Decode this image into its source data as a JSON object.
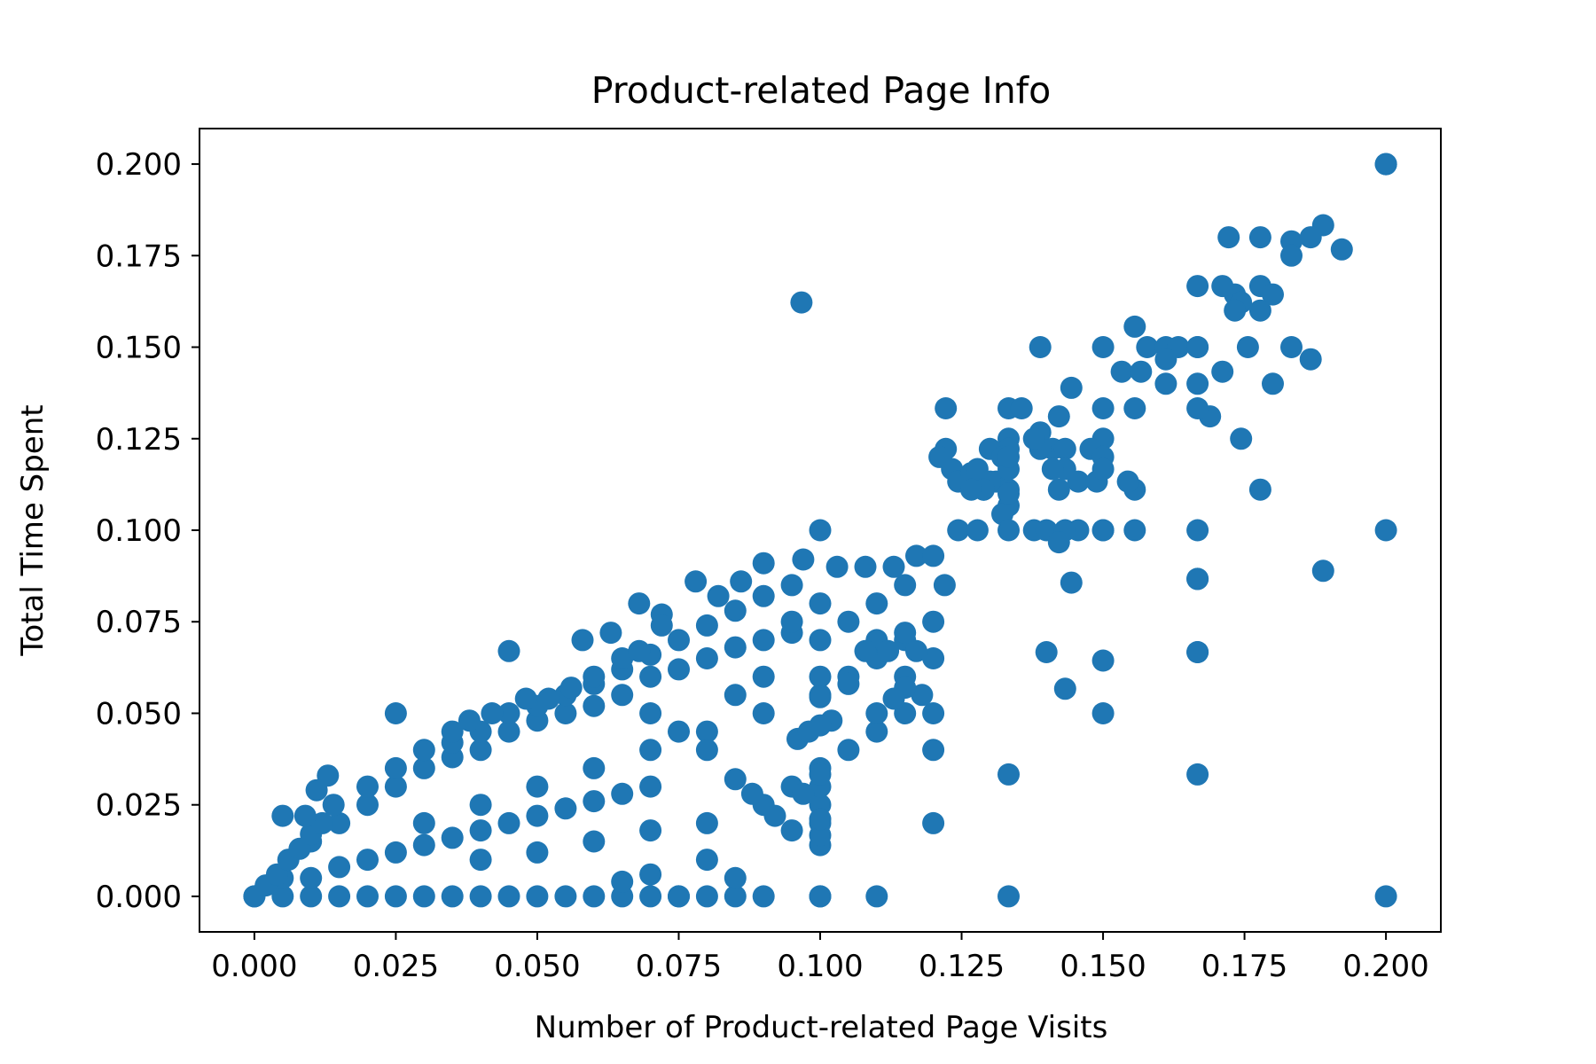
{
  "chart_data": {
    "type": "scatter",
    "title": "Product-related Page Info",
    "xlabel": "Number of Product-related Page Visits",
    "ylabel": "Total Time Spent",
    "xlim": [
      -0.0097,
      0.2097
    ],
    "ylim": [
      -0.0097,
      0.2097
    ],
    "xticks": [
      0.0,
      0.025,
      0.05,
      0.075,
      0.1,
      0.125,
      0.15,
      0.175,
      0.2
    ],
    "yticks": [
      0.0,
      0.025,
      0.05,
      0.075,
      0.1,
      0.125,
      0.15,
      0.175,
      0.2
    ],
    "xtick_labels": [
      "0.000",
      "0.025",
      "0.050",
      "0.075",
      "0.100",
      "0.125",
      "0.150",
      "0.175",
      "0.200"
    ],
    "ytick_labels": [
      "0.000",
      "0.025",
      "0.050",
      "0.075",
      "0.100",
      "0.125",
      "0.150",
      "0.175",
      "0.200"
    ],
    "grid": false,
    "marker_color": "#1f77b4",
    "series": [
      {
        "x": [
          0.2,
          0.2,
          0.2,
          0.1889,
          0.1833,
          0.1778,
          0.1722,
          0.1922,
          0.1867,
          0.1833,
          0.1778,
          0.1733,
          0.1667,
          0.1711,
          0.1744,
          0.18,
          0.1778,
          0.1733,
          0.1833,
          0.1756,
          0.1711,
          0.1667,
          0.1689,
          0.1667,
          0.18,
          0.1744,
          0.1778,
          0.1667,
          0.1667,
          0.1667,
          0.1667,
          0.1889,
          0.1867,
          0.0967,
          0.1389,
          0.15,
          0.1556,
          0.1578,
          0.1611,
          0.1633,
          0.1667,
          0.1533,
          0.1611,
          0.1567,
          0.1556,
          0.1444,
          0.1422,
          0.1333,
          0.1333,
          0.1356,
          0.1389,
          0.1411,
          0.1433,
          0.15,
          0.15,
          0.1478,
          0.1456,
          0.1489,
          0.15,
          0.15,
          0.1611,
          0.1556,
          0.1544,
          0.1444,
          0.1422,
          0.1433,
          0.1411,
          0.1389,
          0.1378,
          0.1456,
          0.15,
          0.1556,
          0.1222,
          0.1222,
          0.1233,
          0.1289,
          0.1311,
          0.1333,
          0.1333,
          0.1211,
          0.1244,
          0.1267,
          0.13,
          0.1322,
          0.1322,
          0.1278,
          0.13,
          0.1333,
          0.1333,
          0.1289,
          0.1267,
          0.1244,
          0.1278,
          0.1322,
          0.1333,
          0.1333,
          0.1333,
          0.1378,
          0.14,
          0.1433,
          0.1422,
          0.14,
          0.1433,
          0.15,
          0.15,
          0.1667,
          0.15,
          0.1333,
          0.1667,
          0.1667,
          0.1,
          0.1,
          0.1,
          0.1,
          0.1,
          0.1,
          0.1,
          0.1,
          0.12,
          0.11,
          0.12,
          0.1333,
          0.2,
          0.2
        ],
        "y": [
          0.2,
          0.2,
          0.2,
          0.1833,
          0.1789,
          0.18,
          0.18,
          0.1767,
          0.18,
          0.175,
          0.1667,
          0.1644,
          0.1667,
          0.1667,
          0.1622,
          0.1644,
          0.16,
          0.16,
          0.15,
          0.15,
          0.1433,
          0.15,
          0.1311,
          0.14,
          0.14,
          0.125,
          0.1111,
          0.1333,
          0.1,
          0.0867,
          0.0667,
          0.0889,
          0.1467,
          0.1622,
          0.15,
          0.15,
          0.1556,
          0.15,
          0.15,
          0.15,
          0.15,
          0.1433,
          0.1467,
          0.1433,
          0.1333,
          0.1389,
          0.1311,
          0.1333,
          0.125,
          0.1333,
          0.1267,
          0.1222,
          0.1222,
          0.1333,
          0.125,
          0.1222,
          0.1133,
          0.1133,
          0.12,
          0.1167,
          0.14,
          0.1111,
          0.1133,
          0.0857,
          0.1111,
          0.1167,
          0.1167,
          0.1222,
          0.125,
          0.1,
          0.1,
          0.1,
          0.1333,
          0.1222,
          0.1167,
          0.1111,
          0.1133,
          0.1222,
          0.1111,
          0.12,
          0.1133,
          0.1156,
          0.1222,
          0.12,
          0.12,
          0.1167,
          0.1133,
          0.1167,
          0.1067,
          0.1111,
          0.1111,
          0.1,
          0.1,
          0.1044,
          0.11,
          0.1,
          0.12,
          0.1,
          0.1,
          0.1,
          0.0967,
          0.0667,
          0.0567,
          0.0644,
          0.05,
          0.0333,
          0.1,
          0.0333,
          0.0867,
          0.0667,
          0.1,
          0.0,
          0.0,
          0.0167,
          0.0211,
          0.0333,
          0.0467,
          0.0544,
          0.04,
          0.0,
          0.02,
          0.0,
          0.1,
          0.0
        ]
      }
    ]
  }
}
